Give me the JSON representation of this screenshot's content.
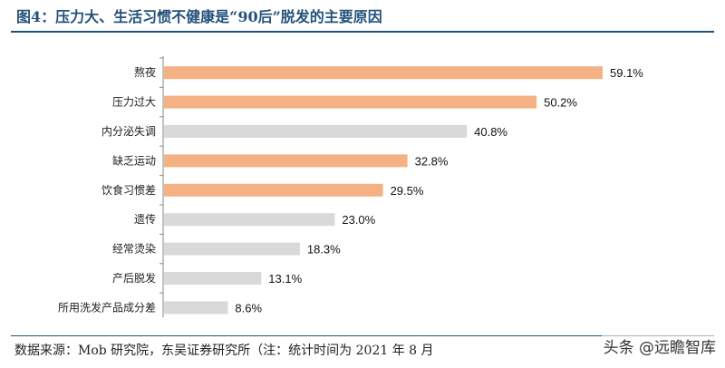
{
  "figure": {
    "title": "图4：压力大、生活习惯不健康是“90后”脱发的主要原因",
    "source_note": "数据来源：Mob 研究院，东吴证券研究所（注：统计时间为 2021 年 8 月",
    "watermark": "头条 @远瞻智库"
  },
  "chart_data": {
    "type": "bar",
    "orientation": "horizontal",
    "title": "压力大、生活习惯不健康是“90后”脱发的主要原因",
    "xlabel": "",
    "ylabel": "",
    "xlim": [
      0,
      59.1
    ],
    "grid": false,
    "categories": [
      "熬夜",
      "压力过大",
      "内分泌失调",
      "缺乏运动",
      "饮食习惯差",
      "遗传",
      "经常烫染",
      "产后脱发",
      "所用洗发产品成分差"
    ],
    "values": [
      59.1,
      50.2,
      40.8,
      32.8,
      29.5,
      23.0,
      18.3,
      13.1,
      8.6
    ],
    "value_labels": [
      "59.1%",
      "50.2%",
      "40.8%",
      "32.8%",
      "29.5%",
      "23.0%",
      "18.3%",
      "13.1%",
      "8.6%"
    ],
    "highlight": [
      true,
      true,
      false,
      true,
      true,
      false,
      false,
      false,
      false
    ],
    "colors": {
      "highlight": "#f4b183",
      "normal": "#d9d9d9",
      "axis": "#888888"
    }
  }
}
